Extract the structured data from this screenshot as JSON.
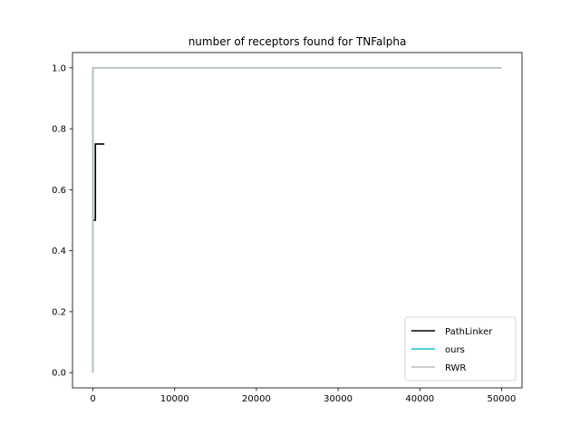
{
  "chart_data": {
    "type": "line",
    "title": "number of receptors found for TNFalpha",
    "xlabel": "",
    "ylabel": "",
    "xlim": [
      -2500,
      52500
    ],
    "ylim": [
      -0.05,
      1.05
    ],
    "xticks": [
      0,
      10000,
      20000,
      30000,
      40000,
      50000
    ],
    "xtick_labels": [
      "0",
      "10000",
      "20000",
      "30000",
      "40000",
      "50000"
    ],
    "yticks": [
      0.0,
      0.2,
      0.4,
      0.6,
      0.8,
      1.0
    ],
    "ytick_labels": [
      "0.0",
      "0.2",
      "0.4",
      "0.6",
      "0.8",
      "1.0"
    ],
    "grid": false,
    "legend_position": "lower-right",
    "series": [
      {
        "name": "PathLinker",
        "color": "#000000",
        "step": true,
        "x": [
          0,
          300,
          300,
          1400
        ],
        "y": [
          0.5,
          0.5,
          0.75,
          0.75
        ]
      },
      {
        "name": "ours",
        "color": "#17becf",
        "step": true,
        "x": [
          0,
          0,
          50000
        ],
        "y": [
          0.0,
          1.0,
          1.0
        ]
      },
      {
        "name": "RWR",
        "color": "#bbbbbb",
        "step": true,
        "x": [
          0,
          0,
          50000
        ],
        "y": [
          0.0,
          1.0,
          1.0
        ]
      }
    ]
  }
}
